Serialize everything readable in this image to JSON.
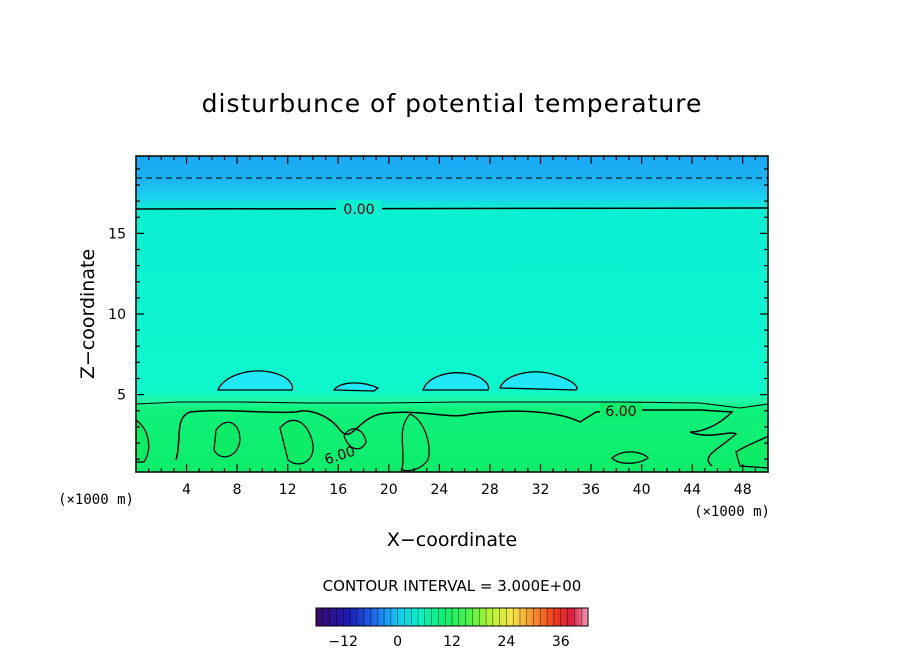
{
  "chart_data": {
    "type": "heatmap",
    "title": "disturbunce of potential temperature",
    "xlabel": "X−coordinate",
    "ylabel": "Z−coordinate",
    "x_unit": "(×1000 m)",
    "y_unit": "(×1000 m)",
    "xlim": [
      0,
      50
    ],
    "ylim": [
      0.2,
      19.8
    ],
    "x_ticks": [
      4,
      8,
      12,
      16,
      20,
      24,
      28,
      32,
      36,
      40,
      44,
      48
    ],
    "y_ticks": [
      5,
      10,
      15
    ],
    "contour_interval_text": "CONTOUR INTERVAL = 3.000E+00",
    "contour_labels": [
      "0.00",
      "6.00",
      "6.00"
    ],
    "contour_levels": [
      0,
      6
    ],
    "field_zones": [
      {
        "z_range": [
          0.2,
          4.5
        ],
        "approx_value": 7.5
      },
      {
        "z_range": [
          4.5,
          16.7
        ],
        "approx_value": 1.5
      },
      {
        "z_range": [
          16.7,
          18.6
        ],
        "approx_value": -1.5
      },
      {
        "z_range": [
          18.6,
          19.8
        ],
        "approx_value": -3
      }
    ],
    "colorbar": {
      "range": [
        -18,
        42
      ],
      "tick_labels": [
        "−12",
        "0",
        "12",
        "24",
        "36"
      ],
      "tick_values": [
        -12,
        0,
        12,
        24,
        36
      ]
    }
  }
}
